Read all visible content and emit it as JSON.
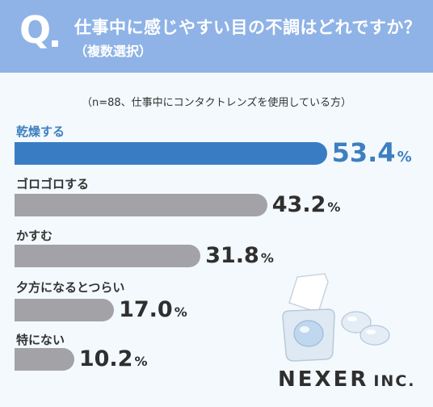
{
  "header": {
    "q_letter": "Q",
    "title": "仕事中に感じやすい目の不調はどれですか？",
    "subtitle": "（複数選択）"
  },
  "note": "（n=88、仕事中にコンタクトレンズを使用している方）",
  "colors": {
    "header_bg": "#8fb3e6",
    "highlight": "#3a7cc4",
    "bar": "#a3a3a7",
    "background": "#f3f9fd"
  },
  "chart_data": {
    "type": "bar",
    "orientation": "horizontal",
    "categories": [
      "乾燥する",
      "ゴロゴロする",
      "かすむ",
      "夕方になるとつらい",
      "特にない"
    ],
    "values": [
      53.4,
      43.2,
      31.8,
      17.0,
      10.2
    ],
    "value_labels": [
      "53.4",
      "43.2",
      "31.8",
      "17.0",
      "10.2"
    ],
    "unit": "%",
    "highlighted_index": 0
  },
  "logo": {
    "main": "NEXER",
    "suffix": "INC."
  },
  "illustration": {
    "icon": "contact-lens-case-icon"
  }
}
